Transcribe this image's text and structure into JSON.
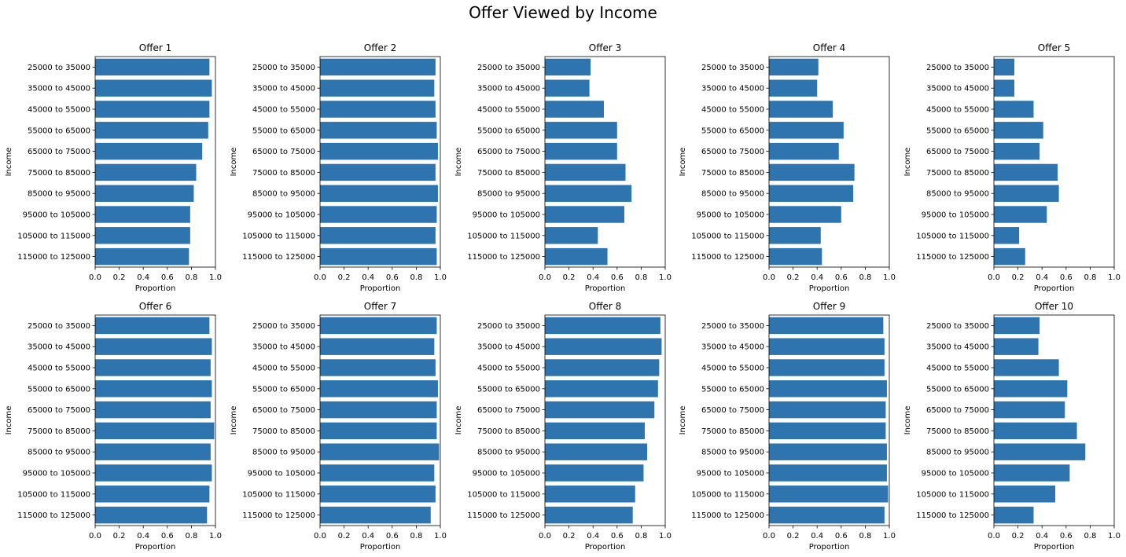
{
  "title": "Offer Viewed by Income",
  "colors": {
    "bar": "#2e75b0",
    "axis": "#000000"
  },
  "chart_data": [
    {
      "type": "bar",
      "orientation": "horizontal",
      "title": "Offer 1",
      "xlabel": "Proportion",
      "ylabel": "Income",
      "xlim": [
        0,
        1
      ],
      "xticks": [
        "0.0",
        "0.2",
        "0.4",
        "0.6",
        "0.8",
        "1.0"
      ],
      "categories": [
        "25000 to 35000",
        "35000 to 45000",
        "45000 to 55000",
        "55000 to 65000",
        "65000 to 75000",
        "75000 to 85000",
        "85000 to 95000",
        "95000 to 105000",
        "105000 to 115000",
        "115000 to 125000"
      ],
      "values": [
        0.95,
        0.97,
        0.95,
        0.94,
        0.89,
        0.84,
        0.82,
        0.79,
        0.79,
        0.78
      ]
    },
    {
      "type": "bar",
      "orientation": "horizontal",
      "title": "Offer 2",
      "xlabel": "Proportion",
      "ylabel": "Income",
      "xlim": [
        0,
        1
      ],
      "xticks": [
        "0.0",
        "0.2",
        "0.4",
        "0.6",
        "0.8",
        "1.0"
      ],
      "categories": [
        "25000 to 35000",
        "35000 to 45000",
        "45000 to 55000",
        "55000 to 65000",
        "65000 to 75000",
        "75000 to 85000",
        "85000 to 95000",
        "95000 to 105000",
        "105000 to 115000",
        "115000 to 125000"
      ],
      "values": [
        0.96,
        0.95,
        0.96,
        0.97,
        0.98,
        0.96,
        0.98,
        0.97,
        0.96,
        0.97
      ]
    },
    {
      "type": "bar",
      "orientation": "horizontal",
      "title": "Offer 3",
      "xlabel": "Proportion",
      "ylabel": "Income",
      "xlim": [
        0,
        1
      ],
      "xticks": [
        "0.0",
        "0.2",
        "0.4",
        "0.6",
        "0.8",
        "1.0"
      ],
      "categories": [
        "25000 to 35000",
        "35000 to 45000",
        "45000 to 55000",
        "55000 to 65000",
        "65000 to 75000",
        "75000 to 85000",
        "85000 to 95000",
        "95000 to 105000",
        "105000 to 115000",
        "115000 to 125000"
      ],
      "values": [
        0.38,
        0.37,
        0.49,
        0.6,
        0.6,
        0.67,
        0.72,
        0.66,
        0.44,
        0.52
      ]
    },
    {
      "type": "bar",
      "orientation": "horizontal",
      "title": "Offer 4",
      "xlabel": "Proportion",
      "ylabel": "Income",
      "xlim": [
        0,
        1
      ],
      "xticks": [
        "0.0",
        "0.2",
        "0.4",
        "0.6",
        "0.8",
        "1.0"
      ],
      "categories": [
        "25000 to 35000",
        "35000 to 45000",
        "45000 to 55000",
        "55000 to 65000",
        "65000 to 75000",
        "75000 to 85000",
        "85000 to 95000",
        "95000 to 105000",
        "105000 to 115000",
        "115000 to 125000"
      ],
      "values": [
        0.41,
        0.4,
        0.53,
        0.62,
        0.58,
        0.71,
        0.7,
        0.6,
        0.43,
        0.44
      ]
    },
    {
      "type": "bar",
      "orientation": "horizontal",
      "title": "Offer 5",
      "xlabel": "Proportion",
      "ylabel": "Income",
      "xlim": [
        0,
        1
      ],
      "xticks": [
        "0.0",
        "0.2",
        "0.4",
        "0.6",
        "0.8",
        "1.0"
      ],
      "categories": [
        "25000 to 35000",
        "35000 to 45000",
        "45000 to 55000",
        "55000 to 65000",
        "65000 to 75000",
        "75000 to 85000",
        "85000 to 95000",
        "95000 to 105000",
        "105000 to 115000",
        "115000 to 125000"
      ],
      "values": [
        0.17,
        0.17,
        0.33,
        0.41,
        0.38,
        0.53,
        0.54,
        0.44,
        0.21,
        0.26
      ]
    },
    {
      "type": "bar",
      "orientation": "horizontal",
      "title": "Offer 6",
      "xlabel": "Proportion",
      "ylabel": "Income",
      "xlim": [
        0,
        1
      ],
      "xticks": [
        "0.0",
        "0.2",
        "0.4",
        "0.6",
        "0.8",
        "1.0"
      ],
      "categories": [
        "25000 to 35000",
        "35000 to 45000",
        "45000 to 55000",
        "55000 to 65000",
        "65000 to 75000",
        "75000 to 85000",
        "85000 to 95000",
        "95000 to 105000",
        "105000 to 115000",
        "115000 to 125000"
      ],
      "values": [
        0.95,
        0.97,
        0.96,
        0.97,
        0.96,
        0.99,
        0.96,
        0.97,
        0.95,
        0.93
      ]
    },
    {
      "type": "bar",
      "orientation": "horizontal",
      "title": "Offer 7",
      "xlabel": "Proportion",
      "ylabel": "Income",
      "xlim": [
        0,
        1
      ],
      "xticks": [
        "0.0",
        "0.2",
        "0.4",
        "0.6",
        "0.8",
        "1.0"
      ],
      "categories": [
        "25000 to 35000",
        "35000 to 45000",
        "45000 to 55000",
        "55000 to 65000",
        "65000 to 75000",
        "75000 to 85000",
        "85000 to 95000",
        "95000 to 105000",
        "105000 to 115000",
        "115000 to 125000"
      ],
      "values": [
        0.97,
        0.95,
        0.96,
        0.98,
        0.97,
        0.97,
        0.99,
        0.95,
        0.96,
        0.92
      ]
    },
    {
      "type": "bar",
      "orientation": "horizontal",
      "title": "Offer 8",
      "xlabel": "Proportion",
      "ylabel": "Income",
      "xlim": [
        0,
        1
      ],
      "xticks": [
        "0.0",
        "0.2",
        "0.4",
        "0.6",
        "0.8",
        "1.0"
      ],
      "categories": [
        "25000 to 35000",
        "35000 to 45000",
        "45000 to 55000",
        "55000 to 65000",
        "65000 to 75000",
        "75000 to 85000",
        "85000 to 95000",
        "95000 to 105000",
        "105000 to 115000",
        "115000 to 125000"
      ],
      "values": [
        0.96,
        0.97,
        0.95,
        0.94,
        0.91,
        0.83,
        0.85,
        0.82,
        0.75,
        0.73
      ]
    },
    {
      "type": "bar",
      "orientation": "horizontal",
      "title": "Offer 9",
      "xlabel": "Proportion",
      "ylabel": "Income",
      "xlim": [
        0,
        1
      ],
      "xticks": [
        "0.0",
        "0.2",
        "0.4",
        "0.6",
        "0.8",
        "1.0"
      ],
      "categories": [
        "25000 to 35000",
        "35000 to 45000",
        "45000 to 55000",
        "55000 to 65000",
        "65000 to 75000",
        "75000 to 85000",
        "85000 to 95000",
        "95000 to 105000",
        "105000 to 115000",
        "115000 to 125000"
      ],
      "values": [
        0.95,
        0.96,
        0.96,
        0.98,
        0.97,
        0.97,
        0.98,
        0.98,
        0.99,
        0.96
      ]
    },
    {
      "type": "bar",
      "orientation": "horizontal",
      "title": "Offer 10",
      "xlabel": "Proportion",
      "ylabel": "Income",
      "xlim": [
        0,
        1
      ],
      "xticks": [
        "0.0",
        "0.2",
        "0.4",
        "0.6",
        "0.8",
        "1.0"
      ],
      "categories": [
        "25000 to 35000",
        "35000 to 45000",
        "45000 to 55000",
        "55000 to 65000",
        "65000 to 75000",
        "75000 to 85000",
        "85000 to 95000",
        "95000 to 105000",
        "105000 to 115000",
        "115000 to 125000"
      ],
      "values": [
        0.38,
        0.37,
        0.54,
        0.61,
        0.59,
        0.69,
        0.76,
        0.63,
        0.51,
        0.33
      ]
    }
  ]
}
